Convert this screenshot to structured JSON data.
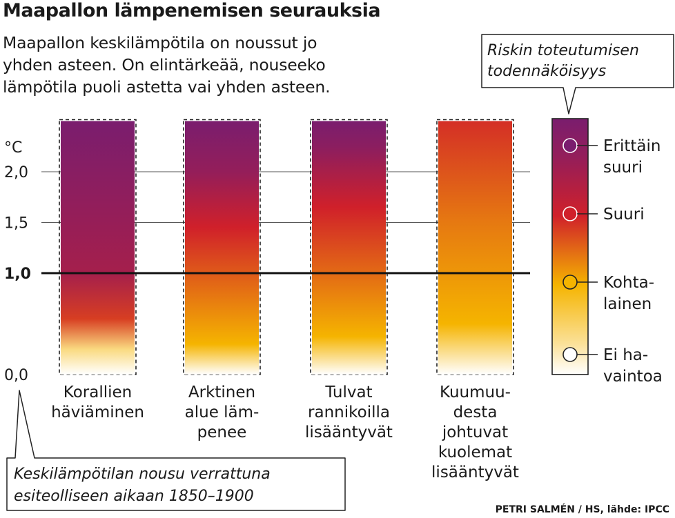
{
  "header": {
    "title": "Maapallon lämpenemisen seurauksia",
    "subtitle_lines": [
      "Maapallon keskilämpötila on noussut jo",
      "yhden asteen. On elintärkeää, nouseeko",
      "lämpötila puoli astetta vai yhden asteen."
    ]
  },
  "colors": {
    "very_high": "#7a1d6e",
    "high": "#d0202a",
    "moderate": "#f5b400",
    "undetected": "#ffffff",
    "outline": "#222222"
  },
  "chart_data": {
    "type": "bar",
    "title": "Maapallon lämpenemisen seurauksia",
    "ylabel": "°C",
    "ylim": [
      0,
      2.5
    ],
    "yticks": [
      {
        "value": 0.0,
        "label": "0,0"
      },
      {
        "value": 1.0,
        "label": "1,0"
      },
      {
        "value": 1.5,
        "label": "1,5"
      },
      {
        "value": 2.0,
        "label": "2,0"
      }
    ],
    "current_warming": 1.0,
    "max_assessed": 2.5,
    "categories": [
      {
        "label_lines": [
          "Korallien",
          "häviäminen"
        ],
        "gradient": [
          {
            "t": 0.0,
            "risk": 0.0
          },
          {
            "t": 0.1,
            "risk": 0.5
          },
          {
            "t": 0.22,
            "risk": 1.8
          },
          {
            "t": 0.4,
            "risk": 2.5
          },
          {
            "t": 1.0,
            "risk": 3.0
          }
        ]
      },
      {
        "label_lines": [
          "Arktinen",
          "alue läm-",
          "penee"
        ],
        "gradient": [
          {
            "t": 0.0,
            "risk": 0.0
          },
          {
            "t": 0.12,
            "risk": 1.0
          },
          {
            "t": 0.35,
            "risk": 1.5
          },
          {
            "t": 0.58,
            "risk": 2.0
          },
          {
            "t": 0.8,
            "risk": 2.7
          },
          {
            "t": 1.0,
            "risk": 3.0
          }
        ]
      },
      {
        "label_lines": [
          "Tulvat",
          "rannikoilla",
          "lisääntyvät"
        ],
        "gradient": [
          {
            "t": 0.0,
            "risk": 0.0
          },
          {
            "t": 0.15,
            "risk": 1.0
          },
          {
            "t": 0.4,
            "risk": 1.5
          },
          {
            "t": 0.66,
            "risk": 2.0
          },
          {
            "t": 0.9,
            "risk": 2.8
          },
          {
            "t": 1.0,
            "risk": 3.0
          }
        ]
      },
      {
        "label_lines": [
          "Kuumuu-",
          "desta",
          "johtuvat",
          "kuolemat",
          "lisääntyvät"
        ],
        "gradient": [
          {
            "t": 0.0,
            "risk": 0.0
          },
          {
            "t": 0.2,
            "risk": 1.0
          },
          {
            "t": 0.6,
            "risk": 1.4
          },
          {
            "t": 1.0,
            "risk": 1.9
          }
        ]
      }
    ]
  },
  "legend": {
    "title_lines": [
      "Riskin toteutumisen",
      "todennäköisyys"
    ],
    "items": [
      {
        "label_lines": [
          "Erittäin",
          "suuri"
        ],
        "risk": 3
      },
      {
        "label_lines": [
          "Suuri"
        ],
        "risk": 2
      },
      {
        "label_lines": [
          "Kohta-",
          "lainen"
        ],
        "risk": 1
      },
      {
        "label_lines": [
          "Ei ha-",
          "vaintoa"
        ],
        "risk": 0
      }
    ]
  },
  "footnote_lines": [
    "Keskilämpötilan nousu verrattuna",
    "esiteolliseen aikaan 1850–1900"
  ],
  "credit": "PETRI SALMÉN / HS, lähde: IPCC"
}
